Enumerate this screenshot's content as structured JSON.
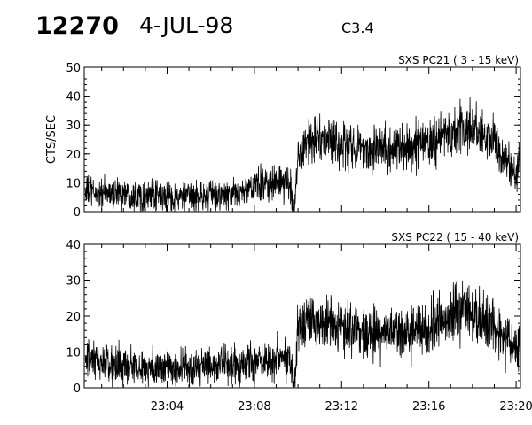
{
  "header": {
    "event_id": "12270",
    "date": "4-JUL-98",
    "flare_class": "C3.4"
  },
  "chart_data": [
    {
      "type": "line",
      "title": "SXS PC21  (  3 - 15 keV)",
      "ylabel": "CTS/SEC",
      "xlabel": "",
      "ylim": [
        0,
        50
      ],
      "yticks": [
        0,
        10,
        20,
        30,
        40,
        50
      ],
      "xlim": [
        "23:00:12",
        "23:20:12"
      ],
      "xticks": [
        "23:04",
        "23:08",
        "23:12",
        "23:16",
        "23:20"
      ],
      "series": [
        {
          "x": [
            "23:00:15",
            "23:01:00",
            "23:02:00",
            "23:03:00",
            "23:04:00",
            "23:05:00",
            "23:06:00",
            "23:07:00",
            "23:07:50",
            "23:08:30",
            "23:09:00",
            "23:09:40",
            "23:09:50",
            "23:10:00",
            "23:10:20",
            "23:11:00",
            "23:12:00",
            "23:13:00",
            "23:14:00",
            "23:15:00",
            "23:16:00",
            "23:17:00",
            "23:17:30",
            "23:18:00",
            "23:19:00",
            "23:19:40",
            "23:20:00",
            "23:20:10"
          ],
          "y": [
            7,
            6,
            6.5,
            5.5,
            5,
            5,
            5.5,
            5.5,
            8,
            10,
            10,
            9,
            1,
            20,
            24,
            25,
            23,
            22,
            22,
            22,
            24,
            27,
            29,
            28,
            24,
            16,
            12,
            20
          ]
        }
      ]
    },
    {
      "type": "line",
      "title": "SXS PC22  ( 15 - 40 keV)",
      "ylabel": "",
      "xlabel": "",
      "ylim": [
        0,
        40
      ],
      "yticks": [
        0,
        10,
        20,
        30,
        40
      ],
      "xlim": [
        "23:00:12",
        "23:20:12"
      ],
      "xticks": [
        "23:04",
        "23:08",
        "23:12",
        "23:16",
        "23:20"
      ],
      "series": [
        {
          "x": [
            "23:00:15",
            "23:01:00",
            "23:02:00",
            "23:03:00",
            "23:04:00",
            "23:05:00",
            "23:06:00",
            "23:07:00",
            "23:07:50",
            "23:08:30",
            "23:09:00",
            "23:09:40",
            "23:09:50",
            "23:10:00",
            "23:10:20",
            "23:11:00",
            "23:12:00",
            "23:13:00",
            "23:14:00",
            "23:15:00",
            "23:16:00",
            "23:17:00",
            "23:17:30",
            "23:18:00",
            "23:19:00",
            "23:19:40",
            "23:20:00",
            "23:20:10"
          ],
          "y": [
            7,
            7,
            6,
            5.5,
            5.5,
            5.5,
            6,
            6,
            7,
            8,
            9,
            8,
            1,
            17,
            19,
            19,
            17,
            16,
            15,
            15,
            17,
            20,
            22,
            20,
            17,
            13,
            10,
            12
          ]
        }
      ]
    }
  ]
}
